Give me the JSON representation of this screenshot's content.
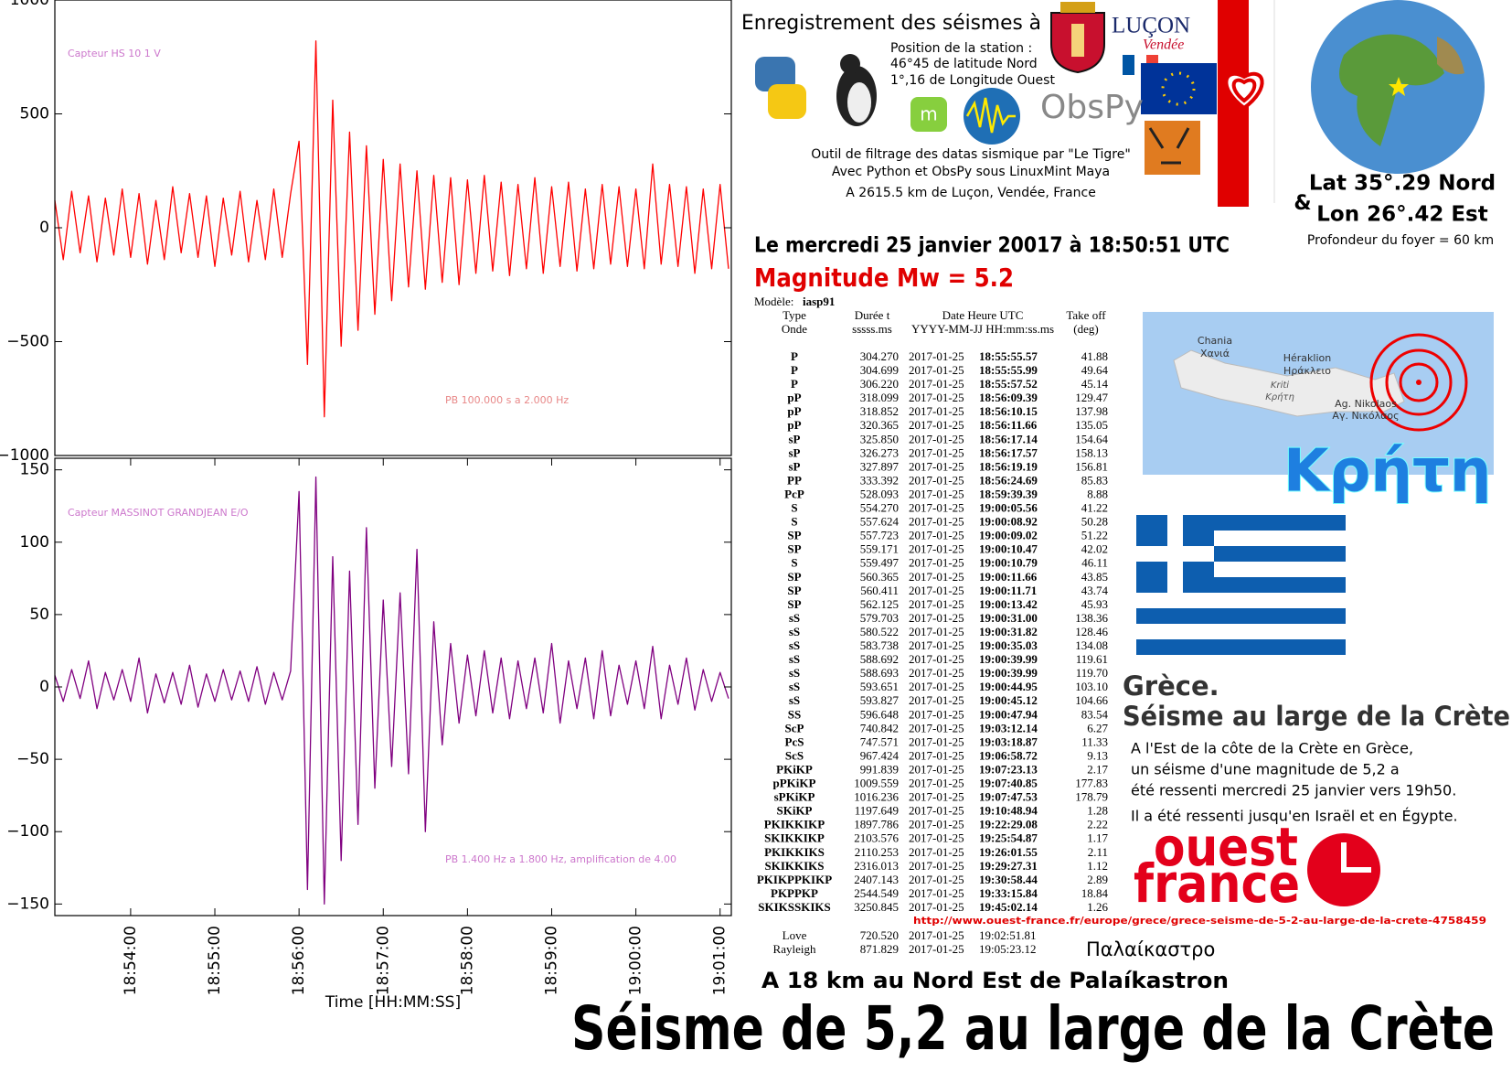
{
  "chart_data": [
    {
      "type": "line",
      "annotations": [
        "Capteur HS 10 1 V",
        "PB 100.000 s a 2.000 Hz"
      ],
      "x": [
        "18:53:06",
        "18:53:12",
        "18:53:18",
        "18:53:24",
        "18:53:30",
        "18:53:36",
        "18:53:42",
        "18:53:48",
        "18:53:54",
        "18:54:00",
        "18:54:06",
        "18:54:12",
        "18:54:18",
        "18:54:24",
        "18:54:30",
        "18:54:36",
        "18:54:42",
        "18:54:48",
        "18:54:54",
        "18:55:00",
        "18:55:06",
        "18:55:12",
        "18:55:18",
        "18:55:24",
        "18:55:30",
        "18:55:36",
        "18:55:42",
        "18:55:48",
        "18:55:54",
        "18:56:00",
        "18:56:06",
        "18:56:12",
        "18:56:18",
        "18:56:24",
        "18:56:30",
        "18:56:36",
        "18:56:42",
        "18:56:48",
        "18:56:54",
        "18:57:00",
        "18:57:06",
        "18:57:12",
        "18:57:18",
        "18:57:24",
        "18:57:30",
        "18:57:36",
        "18:57:42",
        "18:57:48",
        "18:57:54",
        "18:58:00",
        "18:58:06",
        "18:58:12",
        "18:58:18",
        "18:58:24",
        "18:58:30",
        "18:58:36",
        "18:58:42",
        "18:58:48",
        "18:58:54",
        "18:59:00",
        "18:59:06",
        "18:59:12",
        "18:59:18",
        "18:59:24",
        "18:59:30",
        "18:59:36",
        "18:59:42",
        "18:59:48",
        "18:59:54",
        "19:00:00",
        "19:00:06",
        "19:00:12",
        "19:00:18",
        "19:00:24",
        "19:00:30",
        "19:00:36",
        "19:00:42",
        "19:00:48",
        "19:00:54",
        "19:01:00",
        "19:01:06"
      ],
      "series": [
        {
          "color": "#ff0000",
          "values": [
            120,
            -140,
            160,
            -110,
            140,
            -150,
            130,
            -120,
            170,
            -130,
            150,
            -160,
            120,
            -140,
            180,
            -110,
            150,
            -130,
            140,
            -170,
            130,
            -120,
            160,
            -150,
            120,
            -140,
            170,
            -130,
            150,
            380,
            -600,
            820,
            -830,
            560,
            -520,
            420,
            -450,
            360,
            -380,
            300,
            -320,
            280,
            -260,
            250,
            -270,
            230,
            -240,
            220,
            -250,
            210,
            -200,
            230,
            -190,
            200,
            -210,
            190,
            -180,
            220,
            -200,
            180,
            -170,
            200,
            -190,
            170,
            -180,
            190,
            -160,
            180,
            -170,
            170,
            -180,
            280,
            -160,
            190,
            -170,
            180,
            -200,
            170,
            -180,
            190,
            -180
          ]
        }
      ],
      "xlim": [
        "18:53:06",
        "19:01:08"
      ],
      "ylim": [
        -1000,
        1000
      ],
      "yticks": [
        {
          "value": -1000,
          "label": "−1000"
        },
        {
          "value": -500,
          "label": "−500"
        },
        0,
        500,
        1000
      ]
    },
    {
      "type": "line",
      "annotations": [
        "Capteur MASSINOT GRANDJEAN E/O",
        "PB 1.400 Hz a 1.800 Hz, amplification de 4.00"
      ],
      "x": [
        "18:53:06",
        "18:53:12",
        "18:53:18",
        "18:53:24",
        "18:53:30",
        "18:53:36",
        "18:53:42",
        "18:53:48",
        "18:53:54",
        "18:54:00",
        "18:54:06",
        "18:54:12",
        "18:54:18",
        "18:54:24",
        "18:54:30",
        "18:54:36",
        "18:54:42",
        "18:54:48",
        "18:54:54",
        "18:55:00",
        "18:55:06",
        "18:55:12",
        "18:55:18",
        "18:55:24",
        "18:55:30",
        "18:55:36",
        "18:55:42",
        "18:55:48",
        "18:55:54",
        "18:56:00",
        "18:56:06",
        "18:56:12",
        "18:56:18",
        "18:56:24",
        "18:56:30",
        "18:56:36",
        "18:56:42",
        "18:56:48",
        "18:56:54",
        "18:57:00",
        "18:57:06",
        "18:57:12",
        "18:57:18",
        "18:57:24",
        "18:57:30",
        "18:57:36",
        "18:57:42",
        "18:57:48",
        "18:57:54",
        "18:58:00",
        "18:58:06",
        "18:58:12",
        "18:58:18",
        "18:58:24",
        "18:58:30",
        "18:58:36",
        "18:58:42",
        "18:58:48",
        "18:58:54",
        "18:59:00",
        "18:59:06",
        "18:59:12",
        "18:59:18",
        "18:59:24",
        "18:59:30",
        "18:59:36",
        "18:59:42",
        "18:59:48",
        "18:59:54",
        "19:00:00",
        "19:00:06",
        "19:00:12",
        "19:00:18",
        "19:00:24",
        "19:00:30",
        "19:00:36",
        "19:00:42",
        "19:00:48",
        "19:00:54",
        "19:01:00",
        "19:01:06"
      ],
      "series": [
        {
          "color": "#800080",
          "values": [
            8,
            -10,
            12,
            -8,
            18,
            -15,
            10,
            -9,
            12,
            -10,
            20,
            -18,
            9,
            -11,
            10,
            -12,
            15,
            -14,
            9,
            -10,
            12,
            -9,
            11,
            -10,
            14,
            -12,
            10,
            -9,
            11,
            135,
            -140,
            145,
            -150,
            90,
            -120,
            80,
            -95,
            110,
            -70,
            60,
            -55,
            65,
            -60,
            95,
            -100,
            45,
            -40,
            30,
            -25,
            22,
            -20,
            25,
            -18,
            20,
            -22,
            18,
            -15,
            20,
            -18,
            30,
            -25,
            18,
            -15,
            20,
            -22,
            25,
            -20,
            15,
            -12,
            18,
            -15,
            28,
            -22,
            15,
            -12,
            20,
            -16,
            12,
            -10,
            10,
            -8
          ]
        }
      ],
      "xlim": [
        "18:53:06",
        "19:01:08"
      ],
      "ylim": [
        -158,
        158
      ],
      "yticks": [
        {
          "value": -150,
          "label": "−150"
        },
        {
          "value": -100,
          "label": "−100"
        },
        {
          "value": -50,
          "label": "−50"
        },
        0,
        50,
        100,
        150
      ],
      "xticks": [
        "18:54:00",
        "18:55:00",
        "18:56:00",
        "18:57:00",
        "18:58:00",
        "18:59:00",
        "19:00:00",
        "19:01:00"
      ],
      "xlabel": "Time [HH:MM:SS]"
    }
  ],
  "header": {
    "title": "Enregistrement des séismes à",
    "town": "LUÇON",
    "region": "Vendée",
    "station": [
      "Position de la station :",
      "46°45 de latitude Nord",
      "1°,16  de Longitude Ouest"
    ],
    "software": "ObsPy",
    "tool": [
      "Outil de filtrage des datas sismique par \"Le Tigre\"",
      "Avec Python et ObsPy sous LinuxMint Maya",
      "A 2615.5 km  de Luçon, Vendée, France"
    ]
  },
  "epicenter": {
    "lat": "Lat 35°.29 Nord",
    "and": "&",
    "lon": "Lon 26°.42 Est",
    "depth": "Profondeur du foyer = 60  km"
  },
  "event": {
    "date": "Le mercredi 25 janvier 20017 à 18:50:51 UTC",
    "magnitude": "Magnitude Mw = 5.2"
  },
  "table": {
    "model_label": "Modèle:",
    "model": "iasp91",
    "headers": [
      [
        "Type",
        "Onde"
      ],
      [
        "Durée t",
        "sssss.ms"
      ],
      [
        "Date Heure UTC",
        "YYYY-MM-JJ  HH:mm:ss.ms"
      ],
      [
        "Take off",
        "(deg)"
      ]
    ],
    "rows": [
      [
        "P",
        "304.270",
        "2017-01-25",
        "18:55:55.57",
        "41.88"
      ],
      [
        "P",
        "304.699",
        "2017-01-25",
        "18:55:55.99",
        "49.64"
      ],
      [
        "P",
        "306.220",
        "2017-01-25",
        "18:55:57.52",
        "45.14"
      ],
      [
        "pP",
        "318.099",
        "2017-01-25",
        "18:56:09.39",
        "129.47"
      ],
      [
        "pP",
        "318.852",
        "2017-01-25",
        "18:56:10.15",
        "137.98"
      ],
      [
        "pP",
        "320.365",
        "2017-01-25",
        "18:56:11.66",
        "135.05"
      ],
      [
        "sP",
        "325.850",
        "2017-01-25",
        "18:56:17.14",
        "154.64"
      ],
      [
        "sP",
        "326.273",
        "2017-01-25",
        "18:56:17.57",
        "158.13"
      ],
      [
        "sP",
        "327.897",
        "2017-01-25",
        "18:56:19.19",
        "156.81"
      ],
      [
        "PP",
        "333.392",
        "2017-01-25",
        "18:56:24.69",
        "85.83"
      ],
      [
        "PcP",
        "528.093",
        "2017-01-25",
        "18:59:39.39",
        "8.88"
      ],
      [
        "S",
        "554.270",
        "2017-01-25",
        "19:00:05.56",
        "41.22"
      ],
      [
        "S",
        "557.624",
        "2017-01-25",
        "19:00:08.92",
        "50.28"
      ],
      [
        "SP",
        "557.723",
        "2017-01-25",
        "19:00:09.02",
        "51.22"
      ],
      [
        "SP",
        "559.171",
        "2017-01-25",
        "19:00:10.47",
        "42.02"
      ],
      [
        "S",
        "559.497",
        "2017-01-25",
        "19:00:10.79",
        "46.11"
      ],
      [
        "SP",
        "560.365",
        "2017-01-25",
        "19:00:11.66",
        "43.85"
      ],
      [
        "SP",
        "560.411",
        "2017-01-25",
        "19:00:11.71",
        "43.74"
      ],
      [
        "SP",
        "562.125",
        "2017-01-25",
        "19:00:13.42",
        "45.93"
      ],
      [
        "sS",
        "579.703",
        "2017-01-25",
        "19:00:31.00",
        "138.36"
      ],
      [
        "sS",
        "580.522",
        "2017-01-25",
        "19:00:31.82",
        "128.46"
      ],
      [
        "sS",
        "583.738",
        "2017-01-25",
        "19:00:35.03",
        "134.08"
      ],
      [
        "sS",
        "588.692",
        "2017-01-25",
        "19:00:39.99",
        "119.61"
      ],
      [
        "sS",
        "588.693",
        "2017-01-25",
        "19:00:39.99",
        "119.70"
      ],
      [
        "sS",
        "593.651",
        "2017-01-25",
        "19:00:44.95",
        "103.10"
      ],
      [
        "sS",
        "593.827",
        "2017-01-25",
        "19:00:45.12",
        "104.66"
      ],
      [
        "SS",
        "596.648",
        "2017-01-25",
        "19:00:47.94",
        "83.54"
      ],
      [
        "ScP",
        "740.842",
        "2017-01-25",
        "19:03:12.14",
        "6.27"
      ],
      [
        "PcS",
        "747.571",
        "2017-01-25",
        "19:03:18.87",
        "11.33"
      ],
      [
        "ScS",
        "967.424",
        "2017-01-25",
        "19:06:58.72",
        "9.13"
      ],
      [
        "PKiKP",
        "991.839",
        "2017-01-25",
        "19:07:23.13",
        "2.17"
      ],
      [
        "pPKiKP",
        "1009.559",
        "2017-01-25",
        "19:07:40.85",
        "177.83"
      ],
      [
        "sPKiKP",
        "1016.236",
        "2017-01-25",
        "19:07:47.53",
        "178.79"
      ],
      [
        "SKiKP",
        "1197.649",
        "2017-01-25",
        "19:10:48.94",
        "1.28"
      ],
      [
        "PKIKKIKP",
        "1897.786",
        "2017-01-25",
        "19:22:29.08",
        "2.22"
      ],
      [
        "SKIKKIKP",
        "2103.576",
        "2017-01-25",
        "19:25:54.87",
        "1.17"
      ],
      [
        "PKIKKIKS",
        "2110.253",
        "2017-01-25",
        "19:26:01.55",
        "2.11"
      ],
      [
        "SKIKKIKS",
        "2316.013",
        "2017-01-25",
        "19:29:27.31",
        "1.12"
      ],
      [
        "PKIKPPKIKP",
        "2407.143",
        "2017-01-25",
        "19:30:58.44",
        "2.89"
      ],
      [
        "PKPPKP",
        "2544.549",
        "2017-01-25",
        "19:33:15.84",
        "18.84"
      ],
      [
        "SKIKSSKIKS",
        "3250.845",
        "2017-01-25",
        "19:45:02.14",
        "1.26"
      ]
    ],
    "surface_rows": [
      [
        "Love",
        "720.520",
        "2017-01-25",
        "19:02:51.81"
      ],
      [
        "Rayleigh",
        "871.829",
        "2017-01-25",
        "19:05:23.12"
      ]
    ]
  },
  "map": {
    "labels": [
      "Chania",
      "Χανιά",
      "Héraklion",
      "Ηράκλειο",
      "Kriti",
      "Κρήτη",
      "Ag. Nikolaos",
      "Αγ. Νικόλαος"
    ],
    "region": "Κρήτη"
  },
  "news": {
    "country": "Grèce.",
    "headline": "Séisme au large de la Crète",
    "text": [
      "A l'Est de la côte de la Crète en Grèce,",
      "un séisme d'une magnitude de 5,2 a",
      "été ressenti mercredi 25 janvier vers 19h50.",
      "Il a été ressenti jusqu'en Israël et en Égypte."
    ],
    "logo": [
      "ouest",
      "france"
    ],
    "url": "http://www.ouest-france.fr/europe/grece/grece-seisme-de-5-2-au-large-de-la-crete-4758459"
  },
  "location": {
    "greek": "Παλαίκαστρο",
    "distance": "A 18 km au Nord Est de Palaíkastron"
  },
  "title": "Séisme de 5,2 au large de la Crète"
}
